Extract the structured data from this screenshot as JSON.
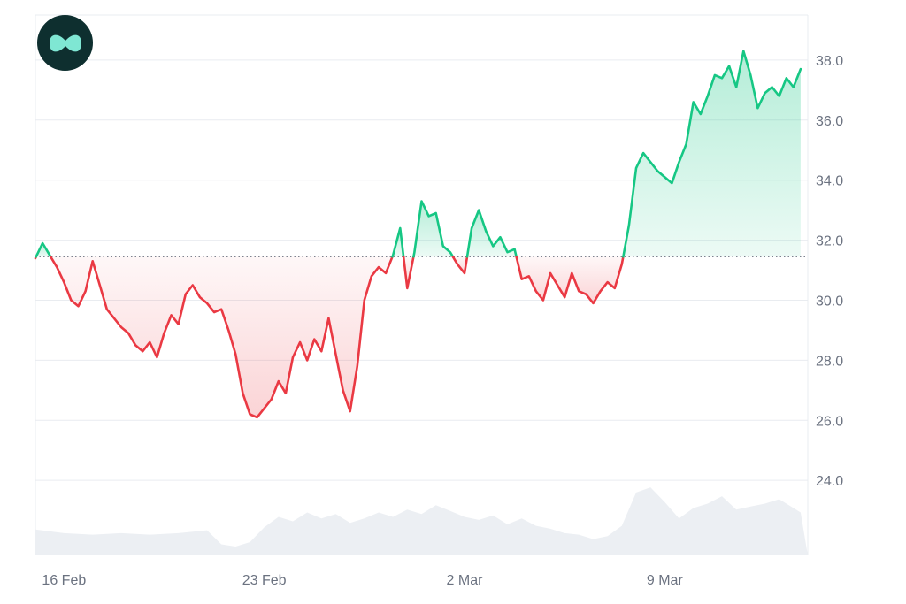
{
  "logo": {
    "icon": "brand-logo-icon",
    "background": "#0e2f2f",
    "glyph_color": "#7fe7d3"
  },
  "colors": {
    "up": "#16c784",
    "down": "#ea3943",
    "grid": "#e9ecf0",
    "volume": "#eceff3",
    "baseline": "#6b7280",
    "axis_text": "#6b7280"
  },
  "chart_data": {
    "type": "line",
    "baseline": 31.45,
    "ylim": [
      21.5,
      39.5
    ],
    "y_ticks": [
      {
        "value": 24,
        "label": "24.0"
      },
      {
        "value": 26,
        "label": "26.0"
      },
      {
        "value": 28,
        "label": "28.0"
      },
      {
        "value": 30,
        "label": "30.0"
      },
      {
        "value": 32,
        "label": "32.0"
      },
      {
        "value": 34,
        "label": "34.0"
      },
      {
        "value": 36,
        "label": "36.0"
      },
      {
        "value": 38,
        "label": "38.0"
      }
    ],
    "x_range": [
      "2026-02-15",
      "2026-03-14"
    ],
    "x_ticks": [
      {
        "date": "2026-02-16",
        "label": "16 Feb"
      },
      {
        "date": "2026-02-23",
        "label": "23 Feb"
      },
      {
        "date": "2026-03-02",
        "label": "2 Mar"
      },
      {
        "date": "2026-03-09",
        "label": "9 Mar"
      }
    ],
    "series": [
      {
        "points": [
          [
            "2026-02-15 00:00",
            31.4
          ],
          [
            "2026-02-15 06:00",
            31.9
          ],
          [
            "2026-02-15 12:00",
            31.5
          ],
          [
            "2026-02-15 18:00",
            31.1
          ],
          [
            "2026-02-16 00:00",
            30.6
          ],
          [
            "2026-02-16 06:00",
            30.0
          ],
          [
            "2026-02-16 12:00",
            29.8
          ],
          [
            "2026-02-16 18:00",
            30.3
          ],
          [
            "2026-02-17 00:00",
            31.3
          ],
          [
            "2026-02-17 06:00",
            30.5
          ],
          [
            "2026-02-17 12:00",
            29.7
          ],
          [
            "2026-02-17 18:00",
            29.4
          ],
          [
            "2026-02-18 00:00",
            29.1
          ],
          [
            "2026-02-18 06:00",
            28.9
          ],
          [
            "2026-02-18 12:00",
            28.5
          ],
          [
            "2026-02-18 18:00",
            28.3
          ],
          [
            "2026-02-19 00:00",
            28.6
          ],
          [
            "2026-02-19 06:00",
            28.1
          ],
          [
            "2026-02-19 12:00",
            28.9
          ],
          [
            "2026-02-19 18:00",
            29.5
          ],
          [
            "2026-02-20 00:00",
            29.2
          ],
          [
            "2026-02-20 06:00",
            30.2
          ],
          [
            "2026-02-20 12:00",
            30.5
          ],
          [
            "2026-02-20 18:00",
            30.1
          ],
          [
            "2026-02-21 00:00",
            29.9
          ],
          [
            "2026-02-21 06:00",
            29.6
          ],
          [
            "2026-02-21 12:00",
            29.7
          ],
          [
            "2026-02-21 18:00",
            29.0
          ],
          [
            "2026-02-22 00:00",
            28.2
          ],
          [
            "2026-02-22 06:00",
            26.9
          ],
          [
            "2026-02-22 12:00",
            26.2
          ],
          [
            "2026-02-22 18:00",
            26.1
          ],
          [
            "2026-02-23 00:00",
            26.4
          ],
          [
            "2026-02-23 06:00",
            26.7
          ],
          [
            "2026-02-23 12:00",
            27.3
          ],
          [
            "2026-02-23 18:00",
            26.9
          ],
          [
            "2026-02-24 00:00",
            28.1
          ],
          [
            "2026-02-24 06:00",
            28.6
          ],
          [
            "2026-02-24 12:00",
            28.0
          ],
          [
            "2026-02-24 18:00",
            28.7
          ],
          [
            "2026-02-25 00:00",
            28.3
          ],
          [
            "2026-02-25 06:00",
            29.4
          ],
          [
            "2026-02-25 12:00",
            28.2
          ],
          [
            "2026-02-25 18:00",
            27.0
          ],
          [
            "2026-02-26 00:00",
            26.3
          ],
          [
            "2026-02-26 06:00",
            27.8
          ],
          [
            "2026-02-26 12:00",
            30.0
          ],
          [
            "2026-02-26 18:00",
            30.8
          ],
          [
            "2026-02-27 00:00",
            31.1
          ],
          [
            "2026-02-27 06:00",
            30.9
          ],
          [
            "2026-02-27 12:00",
            31.5
          ],
          [
            "2026-02-27 18:00",
            32.4
          ],
          [
            "2026-02-28 00:00",
            30.4
          ],
          [
            "2026-02-28 06:00",
            31.6
          ],
          [
            "2026-02-28 12:00",
            33.3
          ],
          [
            "2026-02-28 18:00",
            32.8
          ],
          [
            "2026-03-01 00:00",
            32.9
          ],
          [
            "2026-03-01 06:00",
            31.8
          ],
          [
            "2026-03-01 12:00",
            31.6
          ],
          [
            "2026-03-01 18:00",
            31.2
          ],
          [
            "2026-03-02 00:00",
            30.9
          ],
          [
            "2026-03-02 06:00",
            32.4
          ],
          [
            "2026-03-02 12:00",
            33.0
          ],
          [
            "2026-03-02 18:00",
            32.3
          ],
          [
            "2026-03-03 00:00",
            31.8
          ],
          [
            "2026-03-03 06:00",
            32.1
          ],
          [
            "2026-03-03 12:00",
            31.6
          ],
          [
            "2026-03-03 18:00",
            31.7
          ],
          [
            "2026-03-04 00:00",
            30.7
          ],
          [
            "2026-03-04 06:00",
            30.8
          ],
          [
            "2026-03-04 12:00",
            30.3
          ],
          [
            "2026-03-04 18:00",
            30.0
          ],
          [
            "2026-03-05 00:00",
            30.9
          ],
          [
            "2026-03-05 06:00",
            30.5
          ],
          [
            "2026-03-05 12:00",
            30.1
          ],
          [
            "2026-03-05 18:00",
            30.9
          ],
          [
            "2026-03-06 00:00",
            30.3
          ],
          [
            "2026-03-06 06:00",
            30.2
          ],
          [
            "2026-03-06 12:00",
            29.9
          ],
          [
            "2026-03-06 18:00",
            30.3
          ],
          [
            "2026-03-07 00:00",
            30.6
          ],
          [
            "2026-03-07 06:00",
            30.4
          ],
          [
            "2026-03-07 12:00",
            31.2
          ],
          [
            "2026-03-07 18:00",
            32.5
          ],
          [
            "2026-03-08 00:00",
            34.4
          ],
          [
            "2026-03-08 06:00",
            34.9
          ],
          [
            "2026-03-08 12:00",
            34.6
          ],
          [
            "2026-03-08 18:00",
            34.3
          ],
          [
            "2026-03-09 00:00",
            34.1
          ],
          [
            "2026-03-09 06:00",
            33.9
          ],
          [
            "2026-03-09 12:00",
            34.6
          ],
          [
            "2026-03-09 18:00",
            35.2
          ],
          [
            "2026-03-10 00:00",
            36.6
          ],
          [
            "2026-03-10 06:00",
            36.2
          ],
          [
            "2026-03-10 12:00",
            36.8
          ],
          [
            "2026-03-10 18:00",
            37.5
          ],
          [
            "2026-03-11 00:00",
            37.4
          ],
          [
            "2026-03-11 06:00",
            37.8
          ],
          [
            "2026-03-11 12:00",
            37.1
          ],
          [
            "2026-03-11 18:00",
            38.3
          ],
          [
            "2026-03-12 00:00",
            37.5
          ],
          [
            "2026-03-12 06:00",
            36.4
          ],
          [
            "2026-03-12 12:00",
            36.9
          ],
          [
            "2026-03-12 18:00",
            37.1
          ],
          [
            "2026-03-13 00:00",
            36.8
          ],
          [
            "2026-03-13 06:00",
            37.4
          ],
          [
            "2026-03-13 12:00",
            37.1
          ],
          [
            "2026-03-13 18:00",
            37.7
          ]
        ]
      }
    ],
    "volume": [
      [
        "2026-02-15 00:00",
        0.35
      ],
      [
        "2026-02-16 00:00",
        0.3
      ],
      [
        "2026-02-17 00:00",
        0.28
      ],
      [
        "2026-02-18 00:00",
        0.3
      ],
      [
        "2026-02-19 00:00",
        0.28
      ],
      [
        "2026-02-20 00:00",
        0.3
      ],
      [
        "2026-02-21 00:00",
        0.34
      ],
      [
        "2026-02-21 12:00",
        0.15
      ],
      [
        "2026-02-22 00:00",
        0.12
      ],
      [
        "2026-02-22 12:00",
        0.18
      ],
      [
        "2026-02-23 00:00",
        0.38
      ],
      [
        "2026-02-23 12:00",
        0.52
      ],
      [
        "2026-02-24 00:00",
        0.46
      ],
      [
        "2026-02-24 12:00",
        0.58
      ],
      [
        "2026-02-25 00:00",
        0.5
      ],
      [
        "2026-02-25 12:00",
        0.56
      ],
      [
        "2026-02-26 00:00",
        0.44
      ],
      [
        "2026-02-26 12:00",
        0.5
      ],
      [
        "2026-02-27 00:00",
        0.58
      ],
      [
        "2026-02-27 12:00",
        0.52
      ],
      [
        "2026-02-28 00:00",
        0.62
      ],
      [
        "2026-02-28 12:00",
        0.56
      ],
      [
        "2026-03-01 00:00",
        0.68
      ],
      [
        "2026-03-01 12:00",
        0.6
      ],
      [
        "2026-03-02 00:00",
        0.52
      ],
      [
        "2026-03-02 12:00",
        0.48
      ],
      [
        "2026-03-03 00:00",
        0.54
      ],
      [
        "2026-03-03 12:00",
        0.42
      ],
      [
        "2026-03-04 00:00",
        0.5
      ],
      [
        "2026-03-04 12:00",
        0.4
      ],
      [
        "2026-03-05 00:00",
        0.36
      ],
      [
        "2026-03-05 12:00",
        0.3
      ],
      [
        "2026-03-06 00:00",
        0.28
      ],
      [
        "2026-03-06 12:00",
        0.22
      ],
      [
        "2026-03-07 00:00",
        0.26
      ],
      [
        "2026-03-07 12:00",
        0.4
      ],
      [
        "2026-03-08 00:00",
        0.85
      ],
      [
        "2026-03-08 12:00",
        0.92
      ],
      [
        "2026-03-09 00:00",
        0.72
      ],
      [
        "2026-03-09 12:00",
        0.5
      ],
      [
        "2026-03-10 00:00",
        0.64
      ],
      [
        "2026-03-10 12:00",
        0.7
      ],
      [
        "2026-03-11 00:00",
        0.8
      ],
      [
        "2026-03-11 12:00",
        0.62
      ],
      [
        "2026-03-12 00:00",
        0.66
      ],
      [
        "2026-03-12 12:00",
        0.7
      ],
      [
        "2026-03-13 00:00",
        0.76
      ],
      [
        "2026-03-13 18:00",
        0.58
      ]
    ],
    "grid": true
  }
}
